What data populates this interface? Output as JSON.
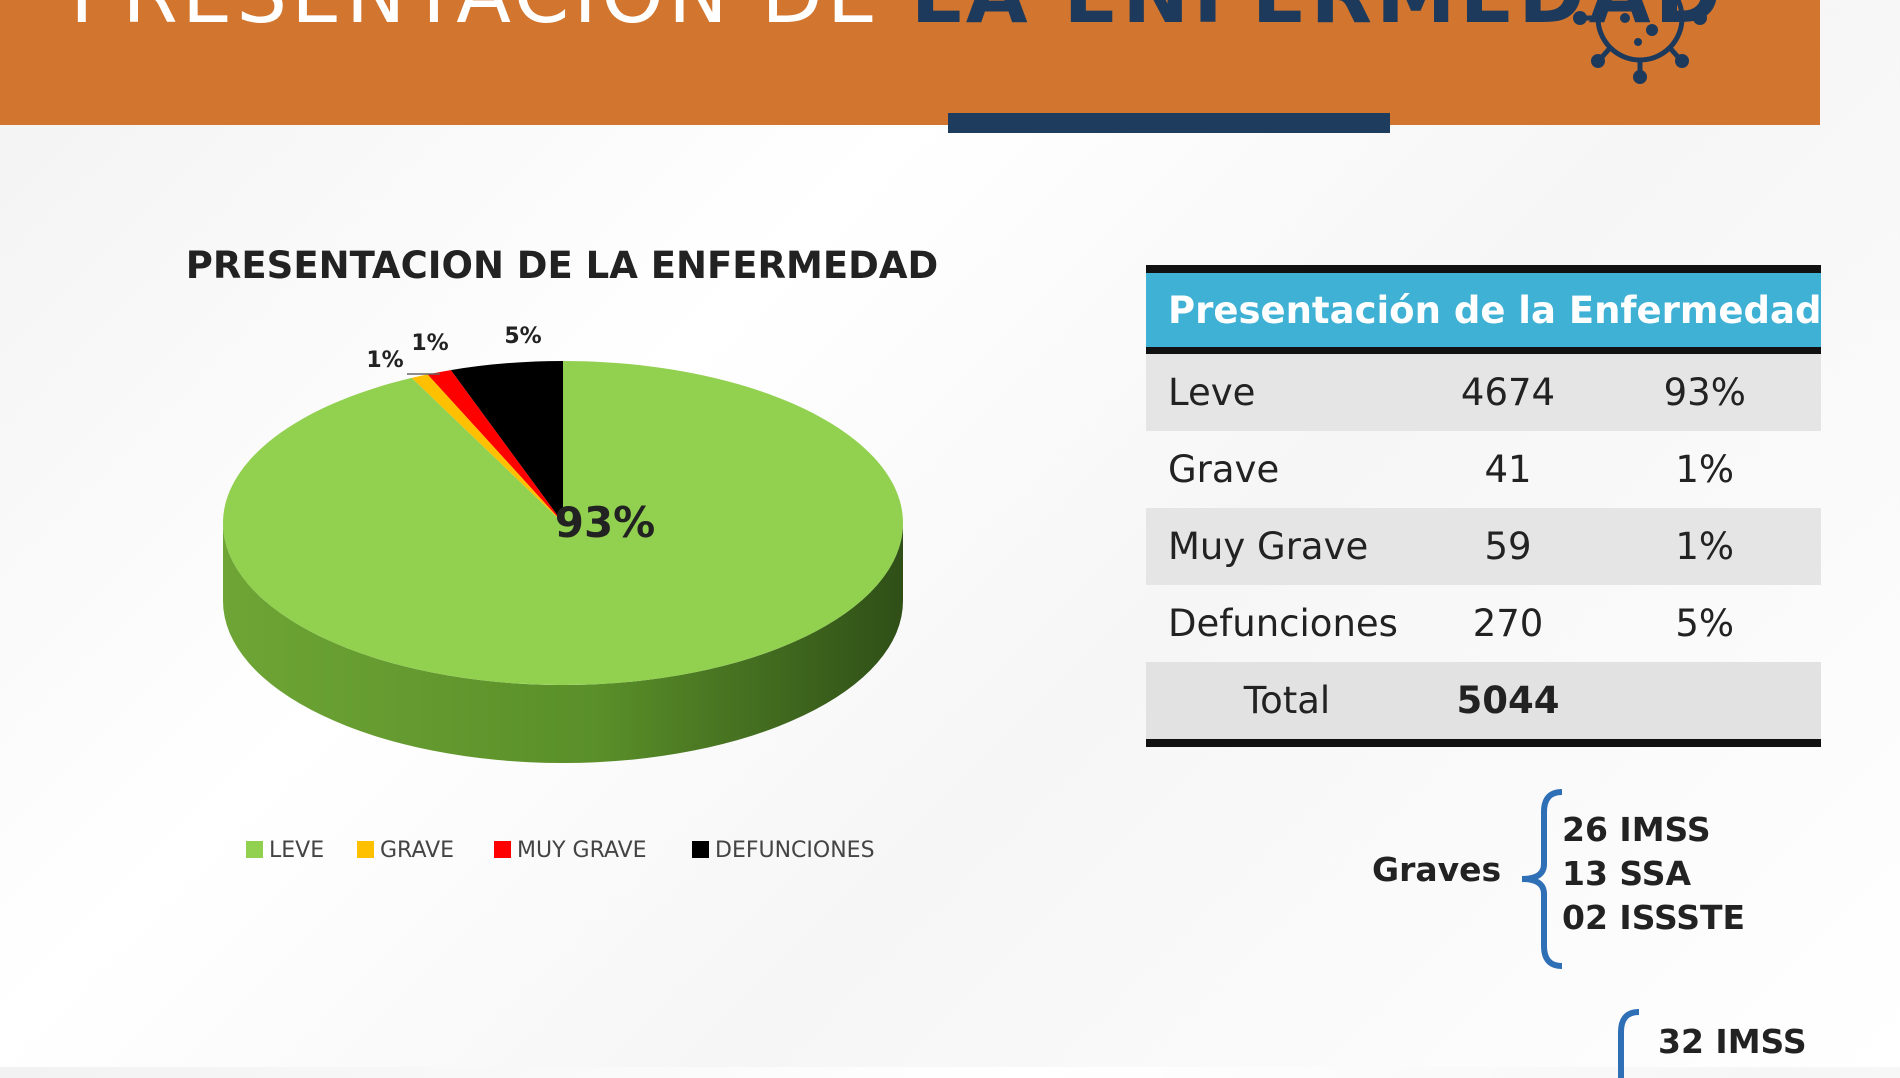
{
  "banner": {
    "title_light": "PRESENTACION DE ",
    "title_bold": "LA ENFERMEDAD"
  },
  "colors": {
    "banner": "#d2762f",
    "banner_text_bold": "#1d3a5c",
    "accent_bar": "#1e3c5e",
    "table_header": "#3eb1d5",
    "leve": "#92d050",
    "grave": "#ffc000",
    "muy_grave": "#ff0000",
    "defunciones": "#000000"
  },
  "icons": {
    "banner": "virus-icon"
  },
  "chart_data": {
    "type": "pie",
    "title": "PRESENTACION DE LA ENFERMEDAD",
    "categories": [
      "LEVE",
      "GRAVE",
      "MUY GRAVE",
      "DEFUNCIONES"
    ],
    "values": [
      4674,
      41,
      59,
      270
    ],
    "data_labels": [
      "93%",
      "1%",
      "1%",
      "5%"
    ],
    "colors": [
      "#92d050",
      "#ffc000",
      "#ff0000",
      "#000000"
    ],
    "legend_position": "bottom",
    "style": "3d"
  },
  "table": {
    "header": "Presentación de la Enfermedad",
    "rows": [
      {
        "label": "Leve",
        "count": "4674",
        "pct": "93%"
      },
      {
        "label": "Grave",
        "count": "41",
        "pct": "1%"
      },
      {
        "label": "Muy Grave",
        "count": "59",
        "pct": "1%"
      },
      {
        "label": "Defunciones",
        "count": "270",
        "pct": "5%"
      }
    ],
    "total": {
      "label": "Total",
      "count": "5044"
    }
  },
  "graves": {
    "label": "Graves",
    "items": [
      "26 IMSS",
      "13 SSA",
      "02 ISSSTE"
    ]
  },
  "next_group": {
    "first_item": "32 IMSS"
  }
}
